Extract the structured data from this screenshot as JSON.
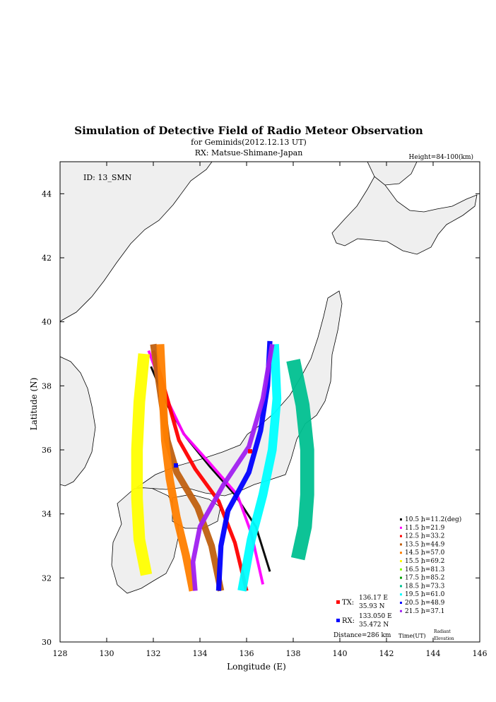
{
  "chart_data": {
    "type": "scatter",
    "title": "Simulation of Detective Field of Radio Meteor Observation",
    "subtitle": "for Geminids(2012.12.13 UT)",
    "subtitle2": "RX: Matsue-Shimane-Japan",
    "height_label": "Height=84-100(km)",
    "id_label": "ID: 13_SMN",
    "xlabel": "Longitude (E)",
    "ylabel": "Latitude (N)",
    "xlim": [
      128,
      146
    ],
    "ylim": [
      30,
      45
    ],
    "xticks": [
      128,
      130,
      132,
      134,
      136,
      138,
      140,
      142,
      144,
      146
    ],
    "yticks": [
      30,
      32,
      34,
      36,
      38,
      40,
      42,
      44
    ],
    "tx": {
      "label": "TX:",
      "lon_text": "136.17 E",
      "lat_text": "35.93 N",
      "lon": 136.17,
      "lat": 35.93,
      "color": "#ff0000"
    },
    "rx": {
      "label": "RX:",
      "lon_text": "133.050 E",
      "lat_text": "35.472 N",
      "lon": 133.05,
      "lat": 35.472,
      "color": "#0000ff"
    },
    "distance": "Distance=286 km",
    "legend_footer": {
      "time": "Time(UT)",
      "radiant1": "Radiant",
      "radiant2": "Elevation"
    },
    "series": [
      {
        "time": "10.5",
        "label": "h=11.2(deg)",
        "color": "#000000",
        "width": 0.09,
        "points": [
          [
            131.9,
            38.6
          ],
          [
            132.6,
            37.4
          ],
          [
            133.4,
            36.4
          ],
          [
            134.4,
            35.5
          ],
          [
            135.5,
            34.6
          ],
          [
            136.4,
            33.6
          ],
          [
            137.0,
            32.2
          ]
        ]
      },
      {
        "time": "11.5",
        "label": "h=21.9",
        "color": "#ff00ff",
        "width": 0.12,
        "points": [
          [
            131.8,
            39.1
          ],
          [
            132.5,
            37.7
          ],
          [
            133.3,
            36.5
          ],
          [
            134.4,
            35.6
          ],
          [
            135.6,
            34.6
          ],
          [
            136.2,
            33.4
          ],
          [
            136.7,
            31.8
          ]
        ]
      },
      {
        "time": "12.5",
        "label": "h=33.2",
        "color": "#ff0000",
        "width": 0.16,
        "points": [
          [
            132.0,
            39.1
          ],
          [
            132.6,
            37.6
          ],
          [
            133.1,
            36.3
          ],
          [
            133.8,
            35.4
          ],
          [
            134.8,
            34.4
          ],
          [
            135.5,
            33.1
          ],
          [
            136.0,
            31.6
          ]
        ]
      },
      {
        "time": "13.5",
        "label": "h=44.9",
        "color": "#c06010",
        "width": 0.28,
        "points": [
          [
            132.0,
            39.3
          ],
          [
            132.3,
            37.8
          ],
          [
            132.6,
            36.3
          ],
          [
            133.0,
            35.3
          ],
          [
            133.9,
            34.2
          ],
          [
            134.5,
            33.0
          ],
          [
            134.9,
            31.6
          ]
        ]
      },
      {
        "time": "14.5",
        "label": "h=57.0",
        "color": "#ff8000",
        "width": 0.34,
        "points": [
          [
            132.3,
            39.3
          ],
          [
            132.4,
            37.8
          ],
          [
            132.5,
            36.3
          ],
          [
            132.7,
            35.1
          ],
          [
            133.0,
            33.9
          ],
          [
            133.4,
            32.7
          ],
          [
            133.7,
            31.6
          ]
        ]
      },
      {
        "time": "15.5",
        "label": "h=69.2",
        "color": "#ffff00",
        "width": 0.5,
        "points": [
          [
            131.6,
            39.0
          ],
          [
            131.4,
            37.5
          ],
          [
            131.3,
            36.0
          ],
          [
            131.3,
            34.5
          ],
          [
            131.4,
            33.2
          ],
          [
            131.7,
            32.1
          ]
        ]
      },
      {
        "time": "16.5",
        "label": "h=81.3",
        "color": "#80ff00",
        "width": 0,
        "points": []
      },
      {
        "time": "17.5",
        "label": "h=85.2",
        "color": "#00a000",
        "width": 0,
        "points": []
      },
      {
        "time": "18.5",
        "label": "h=73.3",
        "color": "#00c090",
        "width": 0.6,
        "points": [
          [
            138.0,
            38.8
          ],
          [
            138.4,
            37.4
          ],
          [
            138.6,
            36.0
          ],
          [
            138.6,
            34.6
          ],
          [
            138.5,
            33.6
          ],
          [
            138.2,
            32.6
          ]
        ]
      },
      {
        "time": "19.5",
        "label": "h=61.0",
        "color": "#00ffff",
        "width": 0.38,
        "points": [
          [
            137.2,
            39.3
          ],
          [
            137.3,
            37.6
          ],
          [
            137.1,
            36.0
          ],
          [
            136.7,
            34.6
          ],
          [
            136.2,
            33.2
          ],
          [
            135.8,
            31.6
          ]
        ]
      },
      {
        "time": "20.5",
        "label": "h=48.9",
        "color": "#0000ff",
        "width": 0.22,
        "points": [
          [
            137.0,
            39.4
          ],
          [
            136.9,
            38.0
          ],
          [
            136.6,
            36.6
          ],
          [
            136.1,
            35.3
          ],
          [
            135.2,
            34.1
          ],
          [
            134.9,
            33.0
          ],
          [
            134.8,
            31.6
          ]
        ]
      },
      {
        "time": "21.5",
        "label": "h=37.1",
        "color": "#a020f0",
        "width": 0.2,
        "points": [
          [
            137.1,
            39.3
          ],
          [
            136.7,
            37.6
          ],
          [
            136.1,
            36.1
          ],
          [
            135.0,
            34.9
          ],
          [
            134.0,
            33.6
          ],
          [
            133.7,
            32.5
          ],
          [
            133.8,
            31.6
          ]
        ]
      }
    ]
  }
}
